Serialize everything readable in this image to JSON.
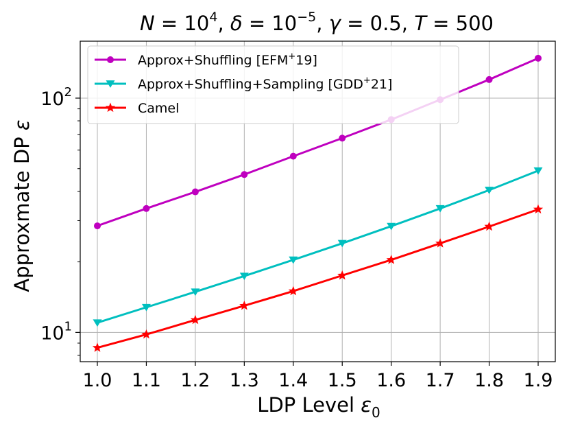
{
  "chart_data": {
    "type": "line",
    "title": "N = 10^4, δ = 10^−5, γ = 0.5, T = 500",
    "title_parts": {
      "n": "N",
      "n_eq": " = 10",
      "n_exp": "4",
      "sep1": ", ",
      "delta": "δ",
      "delta_eq": " = 10",
      "delta_exp": "−5",
      "sep2": ", ",
      "gamma": "γ",
      "gamma_eq": " = 0.5, ",
      "t": "T",
      "t_eq": " = 500"
    },
    "xlabel": "LDP Level ε0",
    "xlabel_parts": {
      "text": "LDP Level ",
      "symbol": "ε",
      "sub": "0"
    },
    "ylabel": "Approxmate DP ε",
    "ylabel_parts": {
      "text": "Approxmate DP ",
      "symbol": "ε"
    },
    "yscale": "log",
    "xlim": [
      0.965,
      1.935
    ],
    "ylim": [
      7.5,
      175
    ],
    "grid": true,
    "legend_position": "top-left",
    "x": [
      1.0,
      1.1,
      1.2,
      1.3,
      1.4,
      1.5,
      1.6,
      1.7,
      1.8,
      1.9
    ],
    "x_tick_labels": [
      "1.0",
      "1.1",
      "1.2",
      "1.3",
      "1.4",
      "1.5",
      "1.6",
      "1.7",
      "1.8",
      "1.9"
    ],
    "y_major_ticks": [
      {
        "value": 10,
        "base": "10",
        "exp": "1"
      },
      {
        "value": 100,
        "base": "10",
        "exp": "2"
      }
    ],
    "series": [
      {
        "name": "Approx+Shuffling [EFM⁺19]",
        "label_parts": {
          "main": "Approx+Shuffling [EFM",
          "sup": "+",
          "rest": "19]"
        },
        "color": "#bf00bf",
        "marker": "circle",
        "values": [
          28.5,
          33.8,
          39.8,
          47.2,
          56.5,
          67.5,
          81.0,
          98.5,
          120.0,
          148.0
        ]
      },
      {
        "name": "Approx+Shuffling+Sampling [GDD⁺21]",
        "label_parts": {
          "main": "Approx+Shuffling+Sampling [GDD",
          "sup": "+",
          "rest": "21]"
        },
        "color": "#00bfbf",
        "marker": "triangle-down",
        "values": [
          11.0,
          12.8,
          14.9,
          17.4,
          20.4,
          24.0,
          28.4,
          33.8,
          40.5,
          49.0
        ]
      },
      {
        "name": "Camel",
        "label_parts": {
          "main": "Camel",
          "sup": "",
          "rest": ""
        },
        "color": "#ff0000",
        "marker": "star",
        "values": [
          8.6,
          9.8,
          11.3,
          13.0,
          15.0,
          17.5,
          20.4,
          24.0,
          28.3,
          33.5
        ]
      }
    ]
  }
}
